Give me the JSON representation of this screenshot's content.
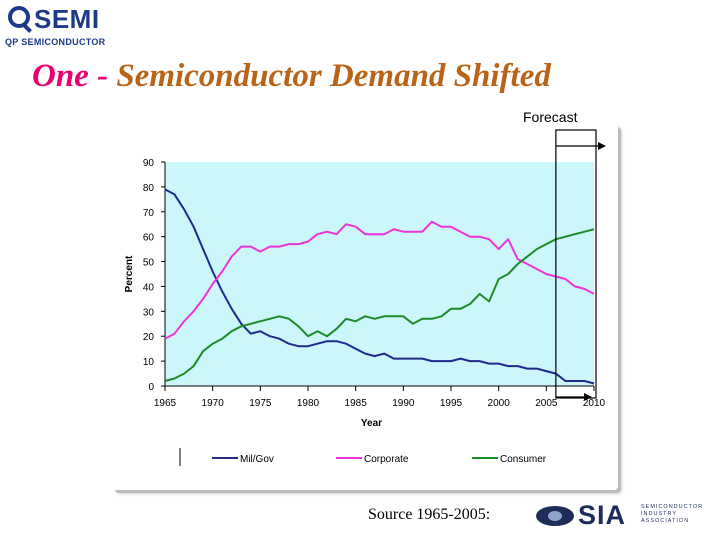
{
  "logo": {
    "word": "SEMI",
    "subtitle": "QP SEMICONDUCTOR"
  },
  "title": {
    "part1": "One -",
    "part2": " Semiconductor Demand Shifted"
  },
  "forecast_label": "Forecast",
  "source_text": "Source 1965-2005:",
  "sia_logo": {
    "word": "SIA",
    "subtitle": "SEMICONDUCTOR INDUSTRY ASSOCIATION"
  },
  "colors": {
    "plot_bg": "#ccf7fa",
    "milgov": "#1f2a8c",
    "corporate": "#ee33d6",
    "consumer": "#1d8a2a"
  },
  "chart_data": {
    "type": "line",
    "xlabel": "Year",
    "ylabel": "Percent",
    "xlim": [
      1965,
      2010
    ],
    "ylim": [
      0,
      90
    ],
    "xticks": [
      1965,
      1970,
      1975,
      1980,
      1985,
      1990,
      1995,
      2000,
      2005,
      2010
    ],
    "yticks": [
      0,
      10,
      20,
      30,
      40,
      50,
      60,
      70,
      80,
      90
    ],
    "legend_position": "bottom",
    "forecast_from": 2006,
    "series": [
      {
        "name": "Mil/Gov",
        "color": "#1f2a8c",
        "x": [
          1965,
          1966,
          1967,
          1968,
          1969,
          1970,
          1971,
          1972,
          1973,
          1974,
          1975,
          1976,
          1977,
          1978,
          1979,
          1980,
          1981,
          1982,
          1983,
          1984,
          1985,
          1986,
          1987,
          1988,
          1989,
          1990,
          1991,
          1992,
          1993,
          1994,
          1995,
          1996,
          1997,
          1998,
          1999,
          2000,
          2001,
          2002,
          2003,
          2004,
          2005,
          2006,
          2007,
          2008,
          2009,
          2010
        ],
        "y": [
          79,
          77,
          71,
          64,
          55,
          46,
          38,
          31,
          25,
          21,
          22,
          20,
          19,
          17,
          16,
          16,
          17,
          18,
          18,
          17,
          15,
          13,
          12,
          13,
          11,
          11,
          11,
          11,
          10,
          10,
          10,
          11,
          10,
          10,
          9,
          9,
          8,
          8,
          7,
          7,
          6,
          5,
          2,
          2,
          2,
          1
        ]
      },
      {
        "name": "Corporate",
        "color": "#ee33d6",
        "x": [
          1965,
          1966,
          1967,
          1968,
          1969,
          1970,
          1971,
          1972,
          1973,
          1974,
          1975,
          1976,
          1977,
          1978,
          1979,
          1980,
          1981,
          1982,
          1983,
          1984,
          1985,
          1986,
          1987,
          1988,
          1989,
          1990,
          1991,
          1992,
          1993,
          1994,
          1995,
          1996,
          1997,
          1998,
          1999,
          2000,
          2001,
          2002,
          2003,
          2004,
          2005,
          2006,
          2007,
          2008,
          2009,
          2010
        ],
        "y": [
          19,
          21,
          26,
          30,
          35,
          41,
          46,
          52,
          56,
          56,
          54,
          56,
          56,
          57,
          57,
          58,
          61,
          62,
          61,
          65,
          64,
          61,
          61,
          61,
          63,
          62,
          62,
          62,
          66,
          64,
          64,
          62,
          60,
          60,
          59,
          55,
          59,
          51,
          49,
          47,
          45,
          44,
          43,
          40,
          39,
          37
        ]
      },
      {
        "name": "Consumer",
        "color": "#1d8a2a",
        "x": [
          1965,
          1966,
          1967,
          1968,
          1969,
          1970,
          1971,
          1972,
          1973,
          1974,
          1975,
          1976,
          1977,
          1978,
          1979,
          1980,
          1981,
          1982,
          1983,
          1984,
          1985,
          1986,
          1987,
          1988,
          1989,
          1990,
          1991,
          1992,
          1993,
          1994,
          1995,
          1996,
          1997,
          1998,
          1999,
          2000,
          2001,
          2002,
          2003,
          2004,
          2005,
          2006,
          2007,
          2008,
          2009,
          2010
        ],
        "y": [
          2,
          3,
          5,
          8,
          14,
          17,
          19,
          22,
          24,
          25,
          26,
          27,
          28,
          27,
          24,
          20,
          22,
          20,
          23,
          27,
          26,
          28,
          27,
          28,
          28,
          28,
          25,
          27,
          27,
          28,
          31,
          31,
          33,
          37,
          34,
          43,
          45,
          49,
          52,
          55,
          57,
          59,
          60,
          61,
          62,
          63
        ]
      }
    ]
  }
}
